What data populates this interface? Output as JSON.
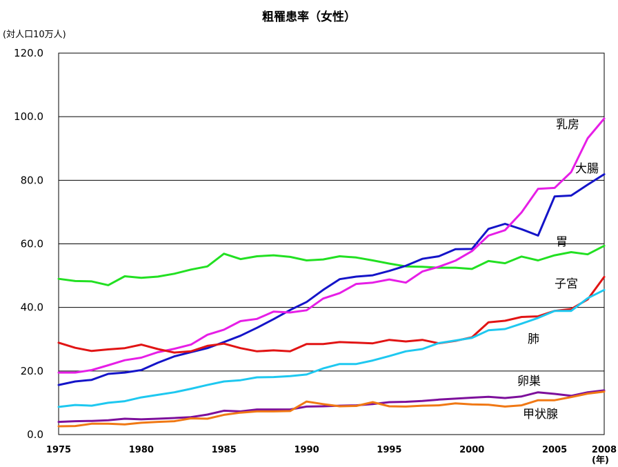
{
  "chart_data": {
    "type": "line",
    "title": "粗罹患率（女性）",
    "ylabel": "(対人口10万人)",
    "xunit": "(年)",
    "ylim": [
      0,
      120
    ],
    "yticks": [
      "0.0",
      "20.0",
      "40.0",
      "60.0",
      "80.0",
      "100.0",
      "120.0"
    ],
    "xticks": [
      "1975",
      "1980",
      "1985",
      "1990",
      "1995",
      "2000",
      "2005",
      "2008"
    ],
    "grid": "horizontal",
    "x": [
      1975,
      1976,
      1977,
      1978,
      1979,
      1980,
      1981,
      1982,
      1983,
      1984,
      1985,
      1986,
      1987,
      1988,
      1989,
      1990,
      1991,
      1992,
      1993,
      1994,
      1995,
      1996,
      1997,
      1998,
      1999,
      2000,
      2001,
      2002,
      2003,
      2004,
      2005,
      2006,
      2007,
      2008
    ],
    "series": [
      {
        "name": "胃",
        "color": "#22e022",
        "values": [
          49.0,
          48.3,
          48.2,
          47.0,
          49.8,
          49.3,
          49.7,
          50.6,
          51.9,
          52.9,
          56.9,
          55.2,
          56.1,
          56.4,
          55.9,
          54.8,
          55.1,
          56.1,
          55.7,
          54.8,
          53.8,
          52.9,
          52.8,
          52.5,
          52.5,
          52.1,
          54.6,
          53.9,
          56.0,
          54.8,
          56.4,
          57.4,
          56.7,
          59.4
        ]
      },
      {
        "name": "大腸",
        "color": "#1414c8",
        "values": [
          15.6,
          16.7,
          17.2,
          19.1,
          19.5,
          20.3,
          22.6,
          24.6,
          25.9,
          27.2,
          29.1,
          31.1,
          33.6,
          36.3,
          39.2,
          41.7,
          45.5,
          48.9,
          49.7,
          50.1,
          51.5,
          53.1,
          55.3,
          56.1,
          58.3,
          58.4,
          64.7,
          66.3,
          64.6,
          62.6,
          74.9,
          75.2,
          78.6,
          81.9
        ]
      },
      {
        "name": "乳房",
        "color": "#e61ee6",
        "values": [
          19.5,
          19.5,
          20.3,
          21.8,
          23.4,
          24.2,
          25.9,
          27.0,
          28.3,
          31.4,
          33.0,
          35.7,
          36.4,
          38.7,
          38.4,
          39.1,
          42.8,
          44.5,
          47.4,
          47.8,
          48.8,
          47.8,
          51.3,
          52.8,
          54.7,
          57.7,
          62.6,
          64.3,
          69.9,
          77.3,
          77.6,
          82.6,
          93.2,
          99.4
        ]
      },
      {
        "name": "子宮",
        "color": "#e11414",
        "values": [
          28.9,
          27.3,
          26.3,
          26.8,
          27.2,
          28.3,
          26.9,
          25.8,
          26.2,
          27.9,
          28.6,
          27.2,
          26.2,
          26.5,
          26.2,
          28.5,
          28.5,
          29.1,
          28.9,
          28.7,
          29.8,
          29.3,
          29.8,
          28.7,
          29.5,
          30.6,
          35.3,
          35.8,
          37.0,
          37.2,
          38.9,
          39.5,
          42.5,
          49.6
        ]
      },
      {
        "name": "肺",
        "color": "#1ec8f0",
        "values": [
          8.7,
          9.3,
          9.1,
          10.0,
          10.5,
          11.7,
          12.5,
          13.3,
          14.4,
          15.6,
          16.7,
          17.1,
          18.0,
          18.1,
          18.4,
          18.9,
          20.8,
          22.2,
          22.2,
          23.3,
          24.7,
          26.2,
          26.9,
          28.8,
          29.6,
          30.4,
          32.8,
          33.2,
          34.9,
          36.7,
          38.9,
          38.9,
          42.9,
          45.5
        ]
      },
      {
        "name": "卵巣",
        "color": "#7d0f9b",
        "values": [
          4.0,
          4.2,
          4.3,
          4.5,
          5.0,
          4.8,
          5.0,
          5.2,
          5.5,
          6.3,
          7.5,
          7.3,
          7.9,
          7.9,
          7.9,
          8.8,
          8.9,
          9.1,
          9.2,
          9.6,
          10.2,
          10.3,
          10.6,
          11.0,
          11.3,
          11.6,
          11.9,
          11.5,
          12.0,
          13.3,
          12.8,
          12.2,
          13.3,
          13.9
        ]
      },
      {
        "name": "甲状腺",
        "color": "#f07814",
        "values": [
          2.6,
          2.7,
          3.4,
          3.4,
          3.2,
          3.7,
          4.0,
          4.2,
          5.1,
          5.0,
          6.2,
          6.9,
          7.3,
          7.3,
          7.4,
          10.4,
          9.6,
          8.9,
          9.0,
          10.2,
          8.9,
          8.8,
          9.1,
          9.2,
          9.8,
          9.5,
          9.4,
          8.8,
          9.2,
          10.8,
          10.8,
          11.8,
          12.9,
          13.5
        ]
      }
    ]
  },
  "labels": {
    "title": "粗罹患率（女性）",
    "unit": "(対人口10万人)",
    "xunit": "(年)",
    "series": [
      "乳房",
      "大腸",
      "胃",
      "子宮",
      "肺",
      "卵巣",
      "甲状腺"
    ]
  }
}
